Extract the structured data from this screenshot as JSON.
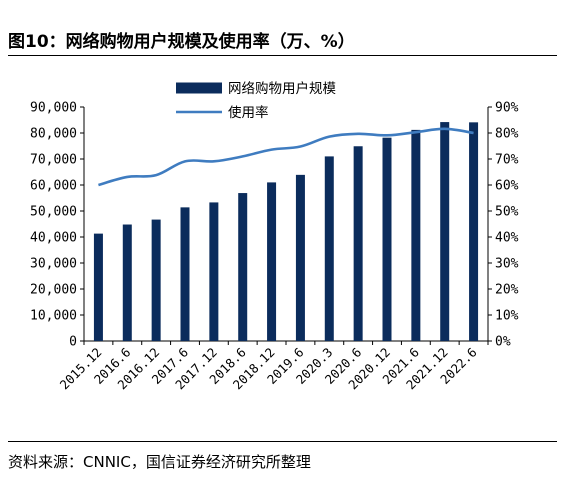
{
  "figure": {
    "title": "图10：网络购物用户规模及使用率（万、%）",
    "source": "资料来源：CNNIC，国信证券经济研究所整理"
  },
  "colors": {
    "bar": "#0b2c5c",
    "line": "#3f7cc0"
  },
  "chart_data": {
    "type": "bar+line",
    "categories": [
      "2015.12",
      "2016.6",
      "2016.12",
      "2017.6",
      "2017.12",
      "2018.6",
      "2018.12",
      "2019.6",
      "2020.3",
      "2020.6",
      "2020.12",
      "2021.6",
      "2021.12",
      "2022.6"
    ],
    "series": [
      {
        "name": "网络购物用户规模",
        "type": "bar",
        "axis": "left",
        "values": [
          41300,
          44800,
          46700,
          51400,
          53300,
          56900,
          61000,
          63900,
          71000,
          74900,
          78200,
          81200,
          84200,
          84100
        ]
      },
      {
        "name": "使用率",
        "type": "line",
        "axis": "right",
        "values": [
          60.0,
          63.1,
          63.8,
          69.1,
          69.1,
          71.0,
          73.6,
          74.8,
          78.6,
          79.7,
          79.1,
          80.3,
          81.6,
          80.0
        ]
      }
    ],
    "y_left": {
      "min": 0,
      "max": 90000,
      "step": 10000,
      "tick_labels": [
        "0",
        "10,000",
        "20,000",
        "30,000",
        "40,000",
        "50,000",
        "60,000",
        "70,000",
        "80,000",
        "90,000"
      ]
    },
    "y_right": {
      "min": 0,
      "max": 90,
      "step": 10,
      "tick_labels": [
        "0%",
        "10%",
        "20%",
        "30%",
        "40%",
        "50%",
        "60%",
        "70%",
        "80%",
        "90%"
      ]
    },
    "legend": [
      {
        "label": "网络购物用户规模",
        "marker": "bar"
      },
      {
        "label": "使用率",
        "marker": "line"
      }
    ],
    "legend_position": "top-center",
    "grid": false
  }
}
